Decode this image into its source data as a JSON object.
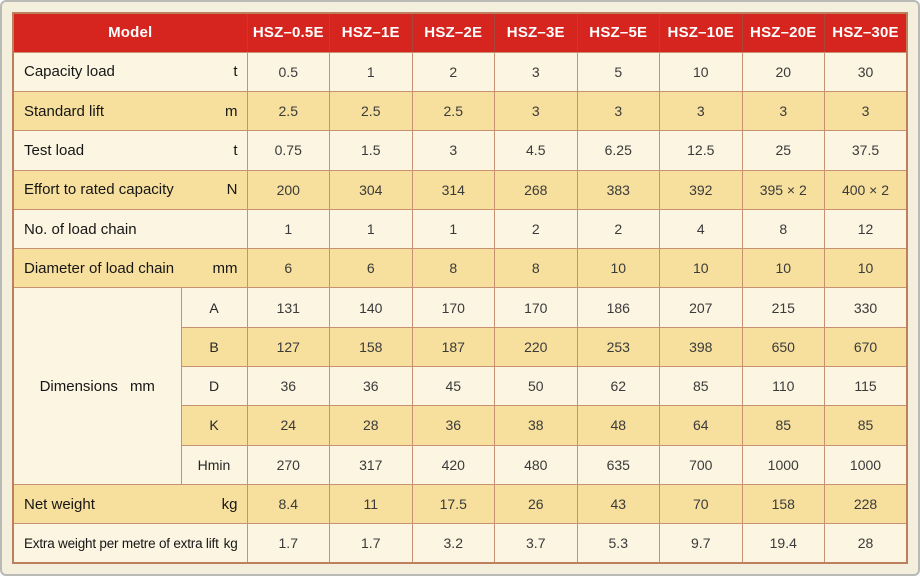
{
  "colors": {
    "header_red": "#d6251e",
    "row_cream": "#fbf5e1",
    "row_tan": "#f7e09d",
    "grid_border": "#c89272",
    "table_outer_border": "#bd7f5e",
    "page_background": "#f4eedd",
    "header_text": "#ffffff"
  },
  "table": {
    "model_header": "Model",
    "model_columns": [
      "HSZ–0.5E",
      "HSZ–1E",
      "HSZ–2E",
      "HSZ–3E",
      "HSZ–5E",
      "HSZ–10E",
      "HSZ–20E",
      "HSZ–30E"
    ],
    "spec_rows": [
      {
        "label": "Capacity load",
        "unit": "t",
        "values": [
          "0.5",
          "1",
          "2",
          "3",
          "5",
          "10",
          "20",
          "30"
        ]
      },
      {
        "label": "Standard lift",
        "unit": "m",
        "values": [
          "2.5",
          "2.5",
          "2.5",
          "3",
          "3",
          "3",
          "3",
          "3"
        ]
      },
      {
        "label": "Test load",
        "unit": "t",
        "values": [
          "0.75",
          "1.5",
          "3",
          "4.5",
          "6.25",
          "12.5",
          "25",
          "37.5"
        ]
      },
      {
        "label": "Effort to rated capacity",
        "unit": "N",
        "values": [
          "200",
          "304",
          "314",
          "268",
          "383",
          "392",
          "395 × 2",
          "400 × 2"
        ]
      },
      {
        "label": "No. of load chain",
        "unit": "",
        "values": [
          "1",
          "1",
          "1",
          "2",
          "2",
          "4",
          "8",
          "12"
        ]
      },
      {
        "label": "Diameter of load chain",
        "unit": "mm",
        "values": [
          "6",
          "6",
          "8",
          "8",
          "10",
          "10",
          "10",
          "10"
        ]
      }
    ],
    "dimensions_group": {
      "label": "Dimensions",
      "unit": "mm",
      "rows": [
        {
          "label": "A",
          "values": [
            "131",
            "140",
            "170",
            "170",
            "186",
            "207",
            "215",
            "330"
          ]
        },
        {
          "label": "B",
          "values": [
            "127",
            "158",
            "187",
            "220",
            "253",
            "398",
            "650",
            "670"
          ]
        },
        {
          "label": "D",
          "values": [
            "36",
            "36",
            "45",
            "50",
            "62",
            "85",
            "110",
            "115"
          ]
        },
        {
          "label": "K",
          "values": [
            "24",
            "28",
            "36",
            "38",
            "48",
            "64",
            "85",
            "85"
          ]
        },
        {
          "label": "Hmin",
          "values": [
            "270",
            "317",
            "420",
            "480",
            "635",
            "700",
            "1000",
            "1000"
          ]
        }
      ]
    },
    "weight_rows": [
      {
        "label": "Net weight",
        "unit": "kg",
        "values": [
          "8.4",
          "11",
          "17.5",
          "26",
          "43",
          "70",
          "158",
          "228"
        ]
      },
      {
        "label": "Extra weight per metre of extra lift",
        "unit": "kg",
        "values": [
          "1.7",
          "1.7",
          "3.2",
          "3.7",
          "5.3",
          "9.7",
          "19.4",
          "28"
        ]
      }
    ]
  }
}
